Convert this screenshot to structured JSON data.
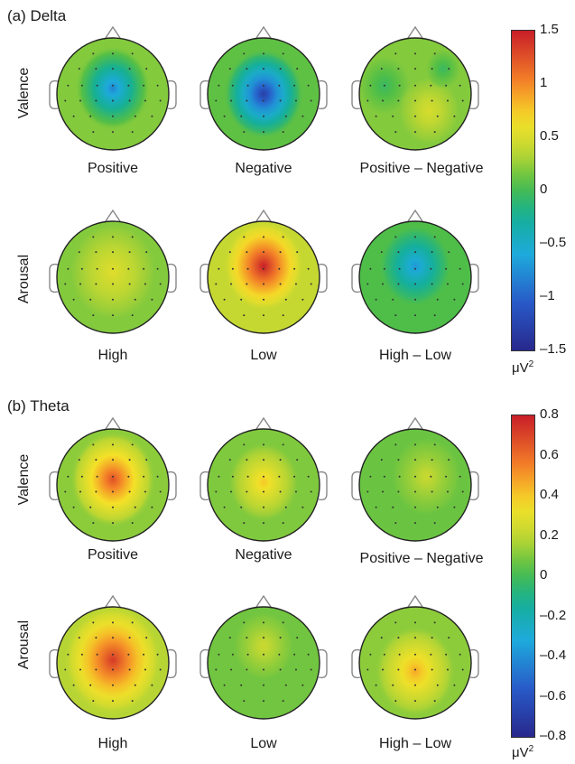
{
  "panels": [
    {
      "title": "(a) Delta",
      "rows": [
        {
          "label": "Valence",
          "captions": [
            "Positive",
            "Negative",
            "Positive – Negative"
          ]
        },
        {
          "label": "Arousal",
          "captions": [
            "High",
            "Low",
            "High – Low"
          ]
        }
      ],
      "colorbar": {
        "ticks": [
          "1.5",
          "1",
          "0.5",
          "0",
          "–0.5",
          "–1",
          "–1.5"
        ],
        "min": -1.5,
        "max": 1.5,
        "unit": "μV",
        "unit_sup": "2"
      },
      "maps": [
        {
          "base": 0.2,
          "blobs": [
            [
              0.0,
              -0.1,
              -1.0,
              0.42
            ]
          ]
        },
        {
          "base": 0.1,
          "blobs": [
            [
              0.0,
              0.0,
              -1.4,
              0.45
            ]
          ]
        },
        {
          "base": 0.2,
          "blobs": [
            [
              -0.55,
              -0.15,
              -0.25,
              0.3
            ],
            [
              0.25,
              0.3,
              0.3,
              0.35
            ],
            [
              0.5,
              -0.45,
              -0.25,
              0.2
            ]
          ]
        },
        {
          "base": 0.2,
          "blobs": [
            [
              0.0,
              -0.1,
              0.35,
              0.5
            ]
          ]
        },
        {
          "base": 0.4,
          "blobs": [
            [
              0.0,
              -0.2,
              1.1,
              0.45
            ]
          ]
        },
        {
          "base": 0.05,
          "blobs": [
            [
              0.0,
              -0.2,
              -0.75,
              0.4
            ]
          ]
        }
      ]
    },
    {
      "title": "(b) Theta",
      "rows": [
        {
          "label": "Valence",
          "captions": [
            "Positive",
            "Negative",
            "Positive – Negative"
          ]
        },
        {
          "label": "Arousal",
          "captions": [
            "High",
            "Low",
            "High – Low"
          ]
        }
      ],
      "colorbar": {
        "ticks": [
          "0.8",
          "0.6",
          "0.4",
          "0.2",
          "0",
          "–0.2",
          "–0.4",
          "–0.6",
          "–0.8"
        ],
        "min": -0.8,
        "max": 0.8,
        "unit": "μV",
        "unit_sup": "2"
      },
      "maps": [
        {
          "base": 0.12,
          "blobs": [
            [
              0.0,
              -0.1,
              0.55,
              0.48
            ]
          ]
        },
        {
          "base": 0.1,
          "blobs": [
            [
              0.0,
              -0.05,
              0.3,
              0.4
            ]
          ]
        },
        {
          "base": 0.07,
          "blobs": [
            [
              0.2,
              -0.15,
              0.15,
              0.4
            ]
          ]
        },
        {
          "base": 0.18,
          "blobs": [
            [
              0.0,
              -0.05,
              0.55,
              0.55
            ]
          ]
        },
        {
          "base": 0.08,
          "blobs": [
            [
              0.0,
              -0.3,
              0.15,
              0.35
            ]
          ]
        },
        {
          "base": 0.12,
          "blobs": [
            [
              0.0,
              0.15,
              0.35,
              0.45
            ]
          ]
        }
      ]
    }
  ]
}
